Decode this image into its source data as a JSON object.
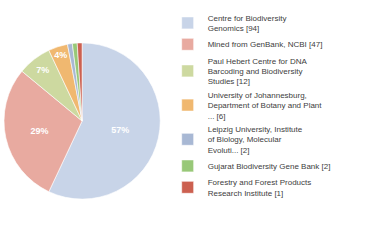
{
  "chart_data": {
    "type": "pie",
    "categories": [
      "Centre for Biodiversity\nGenomics [94]",
      "Mined from GenBank, NCBI [47]",
      "Paul Hebert Centre for DNA\nBarcoding and Biodiversity\nStudies [12]",
      "University of Johannesburg,\nDepartment of Botany and Plant\n... [6]",
      "Leipzig University, Institute\nof Biology, Molecular\nEvoluti... [2]",
      "Gujarat Biodiversity Gene Bank [2]",
      "Forestry and Forest Products\nResearch Institute [1]"
    ],
    "values": [
      57,
      29,
      7,
      4,
      1,
      1,
      1
    ],
    "value_labels": [
      "57%",
      "29%",
      "7%",
      "4%",
      null,
      null,
      null
    ],
    "colors": [
      "#c8d4e8",
      "#e8aaa0",
      "#cdd9a0",
      "#f0b870",
      "#a8b8d4",
      "#98c878",
      "#cc6050"
    ],
    "data_labels": true,
    "legend": "right"
  }
}
